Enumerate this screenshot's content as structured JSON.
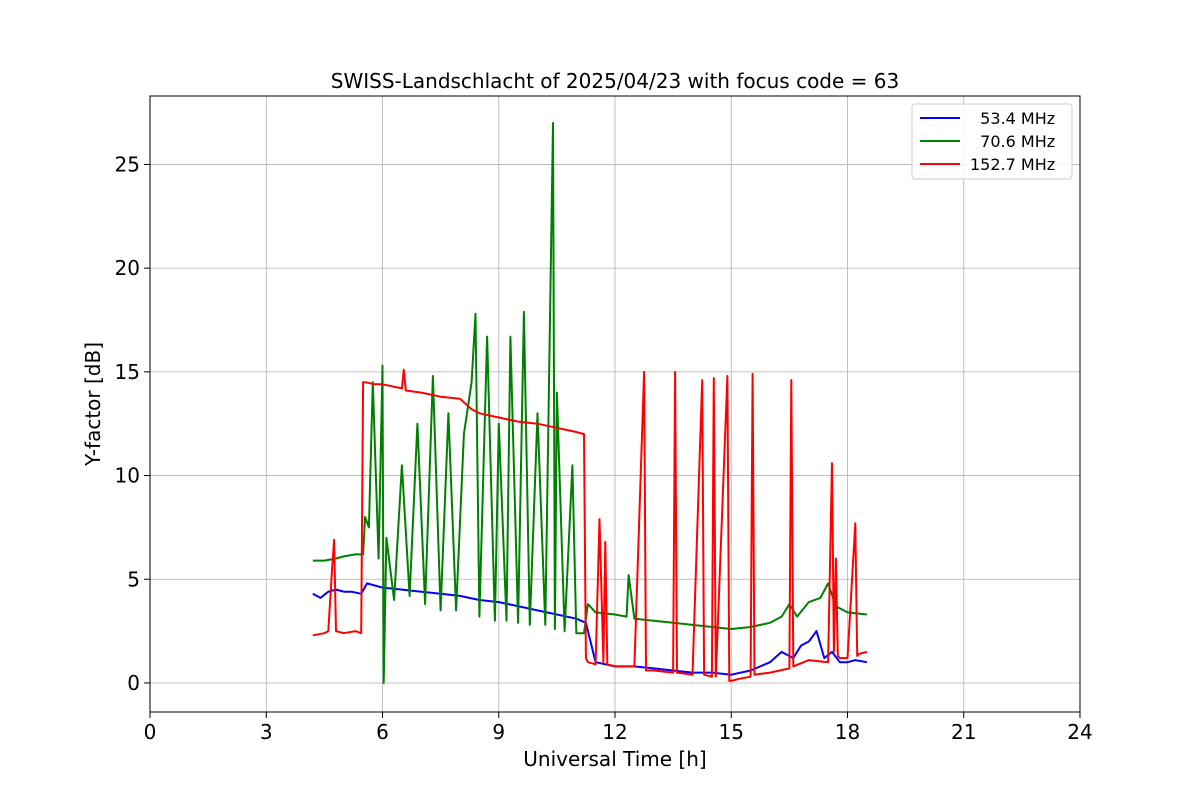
{
  "chart_data": {
    "type": "line",
    "title": "SWISS-Landschlacht of 2025/04/23 with focus code = 63",
    "xlabel": "Universal Time [h]",
    "ylabel": "Y-factor [dB]",
    "xlim": [
      0,
      24
    ],
    "ylim": [
      -1.4,
      28.3
    ],
    "xticks": [
      0,
      3,
      6,
      9,
      12,
      15,
      18,
      21,
      24
    ],
    "yticks": [
      0,
      5,
      10,
      15,
      20,
      25
    ],
    "grid": true,
    "legend_position": "upper right",
    "series": [
      {
        "name": "  53.4 MHz",
        "color": "#0000ff",
        "x": [
          4.2,
          4.4,
          4.6,
          4.8,
          5.0,
          5.2,
          5.45,
          5.6,
          5.8,
          6.0,
          6.5,
          7.0,
          7.5,
          8.0,
          8.5,
          9.0,
          9.5,
          10.0,
          10.5,
          11.0,
          11.25,
          11.5,
          12.0,
          12.5,
          13.0,
          13.5,
          14.0,
          14.5,
          15.0,
          15.5,
          16.0,
          16.3,
          16.6,
          16.8,
          17.0,
          17.2,
          17.4,
          17.6,
          17.8,
          18.0,
          18.2,
          18.5
        ],
        "y": [
          4.3,
          4.1,
          4.4,
          4.5,
          4.4,
          4.4,
          4.3,
          4.8,
          4.7,
          4.6,
          4.5,
          4.4,
          4.3,
          4.2,
          4.0,
          3.9,
          3.7,
          3.5,
          3.3,
          3.1,
          2.9,
          1.0,
          0.8,
          0.8,
          0.7,
          0.6,
          0.5,
          0.5,
          0.4,
          0.6,
          1.0,
          1.5,
          1.2,
          1.8,
          2.0,
          2.5,
          1.2,
          1.5,
          1.0,
          1.0,
          1.1,
          1.0
        ]
      },
      {
        "name": "  70.6 MHz",
        "color": "#008000",
        "x": [
          4.2,
          4.5,
          4.8,
          5.0,
          5.3,
          5.5,
          5.55,
          5.65,
          5.75,
          5.9,
          6.0,
          6.03,
          6.1,
          6.3,
          6.5,
          6.7,
          6.9,
          7.1,
          7.3,
          7.5,
          7.7,
          7.9,
          8.1,
          8.3,
          8.4,
          8.5,
          8.7,
          8.9,
          9.0,
          9.2,
          9.3,
          9.5,
          9.65,
          9.8,
          10.0,
          10.2,
          10.4,
          10.45,
          10.5,
          10.7,
          10.9,
          11.0,
          11.2,
          11.3,
          11.5,
          12.0,
          12.3,
          12.35,
          12.5,
          13.0,
          13.5,
          14.0,
          14.5,
          15.0,
          15.5,
          16.0,
          16.3,
          16.5,
          16.7,
          17.0,
          17.3,
          17.5,
          17.7,
          18.0,
          18.5
        ],
        "y": [
          5.9,
          5.9,
          6.0,
          6.1,
          6.2,
          6.2,
          8.0,
          7.5,
          14.5,
          6.0,
          15.3,
          0.0,
          7.0,
          4.0,
          10.5,
          4.2,
          12.5,
          3.8,
          14.8,
          3.5,
          13.0,
          3.5,
          12.0,
          14.5,
          17.8,
          3.2,
          16.7,
          3.0,
          12.5,
          3.0,
          16.7,
          2.9,
          17.9,
          2.8,
          13.0,
          2.8,
          27.0,
          2.6,
          14.0,
          2.5,
          10.5,
          2.4,
          2.4,
          3.8,
          3.4,
          3.3,
          3.2,
          5.2,
          3.1,
          3.0,
          2.9,
          2.8,
          2.7,
          2.6,
          2.7,
          2.9,
          3.2,
          3.8,
          3.2,
          3.9,
          4.1,
          4.8,
          3.7,
          3.4,
          3.3
        ]
      },
      {
        "name": "152.7 MHz",
        "color": "#ff0000",
        "x": [
          4.2,
          4.5,
          4.6,
          4.7,
          4.75,
          4.8,
          5.0,
          5.3,
          5.45,
          5.5,
          5.55,
          5.8,
          6.0,
          6.5,
          6.55,
          6.6,
          7.0,
          7.5,
          8.0,
          8.3,
          8.5,
          9.0,
          9.5,
          10.0,
          10.5,
          11.0,
          11.2,
          11.25,
          11.3,
          11.5,
          11.6,
          11.7,
          11.75,
          11.8,
          12.0,
          12.5,
          12.75,
          12.8,
          13.0,
          13.5,
          13.55,
          13.6,
          14.0,
          14.25,
          14.3,
          14.5,
          14.55,
          14.6,
          14.9,
          14.95,
          15.0,
          15.2,
          15.5,
          15.55,
          15.6,
          16.0,
          16.5,
          16.55,
          16.6,
          17.0,
          17.5,
          17.6,
          17.65,
          17.7,
          17.75,
          17.8,
          18.0,
          18.2,
          18.25,
          18.3,
          18.5
        ],
        "y": [
          2.3,
          2.4,
          2.5,
          5.5,
          6.9,
          2.5,
          2.4,
          2.5,
          2.4,
          14.5,
          14.5,
          14.4,
          14.4,
          14.2,
          15.1,
          14.1,
          14.0,
          13.8,
          13.7,
          13.2,
          13.0,
          12.8,
          12.6,
          12.5,
          12.3,
          12.1,
          12.0,
          1.2,
          1.0,
          0.9,
          7.9,
          1.0,
          6.8,
          0.9,
          0.8,
          0.8,
          15.0,
          0.6,
          0.6,
          0.5,
          15.0,
          0.5,
          0.4,
          14.6,
          0.4,
          0.3,
          14.7,
          0.3,
          14.8,
          0.1,
          0.1,
          0.2,
          0.3,
          14.9,
          0.4,
          0.5,
          0.7,
          14.6,
          0.8,
          1.1,
          1.0,
          10.6,
          1.5,
          6.0,
          1.3,
          1.2,
          1.2,
          7.7,
          1.3,
          1.4,
          1.5
        ]
      }
    ]
  }
}
